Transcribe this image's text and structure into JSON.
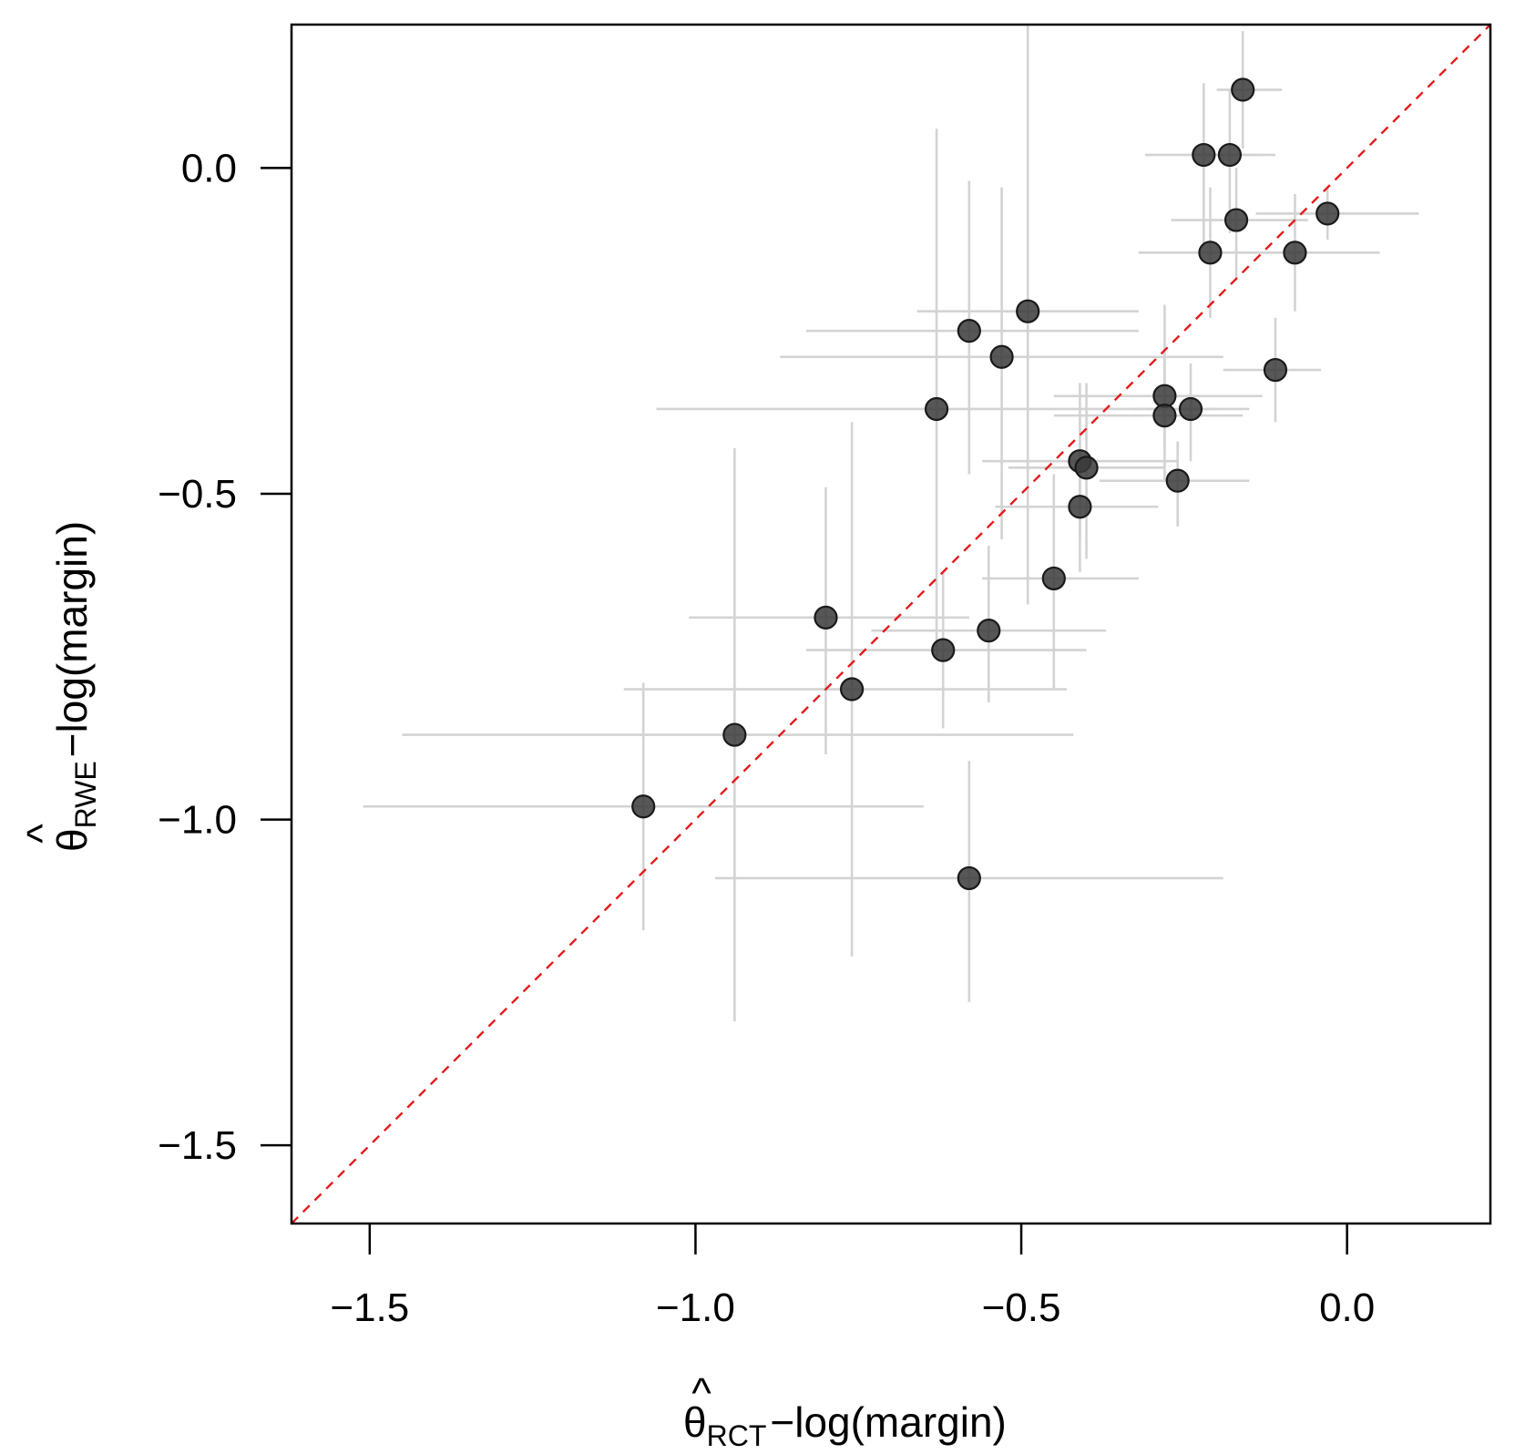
{
  "chart_data": {
    "type": "scatter",
    "title": "",
    "xlabel": {
      "symbol": "θ",
      "hat": "^",
      "subscript": "RCT",
      "rest": "−log(margin)"
    },
    "ylabel": {
      "symbol": "θ",
      "hat": "^",
      "subscript": "RWE",
      "rest": "−log(margin)"
    },
    "xlim": [
      -1.62,
      0.22
    ],
    "ylim": [
      -1.62,
      0.22
    ],
    "xticks": [
      -1.5,
      -1.0,
      -0.5,
      0.0
    ],
    "yticks": [
      -1.5,
      -1.0,
      -0.5,
      0.0
    ],
    "xtick_labels": [
      "−1.5",
      "−1.0",
      "−0.5",
      "0.0"
    ],
    "ytick_labels": [
      "−1.5",
      "−1.0",
      "−0.5",
      "0.0"
    ],
    "reference_line": {
      "type": "identity",
      "style": "dashed",
      "color": "#e41a1c"
    },
    "colors": {
      "point": "#3a3a3a",
      "error_bar": "#d3d3d3",
      "reference": "#e41a1c"
    },
    "points": [
      {
        "x": -0.16,
        "y": 0.12,
        "x_lo": -0.2,
        "x_hi": -0.1,
        "y_lo": 0.03,
        "y_hi": 0.21
      },
      {
        "x": -0.22,
        "y": 0.02,
        "x_lo": -0.31,
        "x_hi": -0.13,
        "y_lo": -0.12,
        "y_hi": 0.13
      },
      {
        "x": -0.18,
        "y": 0.02,
        "x_lo": -0.24,
        "x_hi": -0.11,
        "y_lo": -0.1,
        "y_hi": 0.12
      },
      {
        "x": -0.17,
        "y": -0.08,
        "x_lo": -0.27,
        "x_hi": -0.06,
        "y_lo": -0.17,
        "y_hi": 0.0
      },
      {
        "x": -0.03,
        "y": -0.07,
        "x_lo": -0.14,
        "x_hi": 0.11,
        "y_lo": -0.11,
        "y_hi": -0.03
      },
      {
        "x": -0.21,
        "y": -0.13,
        "x_lo": -0.32,
        "x_hi": -0.11,
        "y_lo": -0.23,
        "y_hi": -0.03
      },
      {
        "x": -0.08,
        "y": -0.13,
        "x_lo": -0.16,
        "x_hi": 0.05,
        "y_lo": -0.22,
        "y_hi": -0.04
      },
      {
        "x": -0.49,
        "y": -0.22,
        "x_lo": -0.66,
        "x_hi": -0.32,
        "y_lo": -0.67,
        "y_hi": 0.22
      },
      {
        "x": -0.58,
        "y": -0.25,
        "x_lo": -0.83,
        "x_hi": -0.32,
        "y_lo": -0.47,
        "y_hi": -0.02
      },
      {
        "x": -0.53,
        "y": -0.29,
        "x_lo": -0.87,
        "x_hi": -0.19,
        "y_lo": -0.57,
        "y_hi": -0.03
      },
      {
        "x": -0.11,
        "y": -0.31,
        "x_lo": -0.19,
        "x_hi": -0.04,
        "y_lo": -0.39,
        "y_hi": -0.23
      },
      {
        "x": -0.28,
        "y": -0.35,
        "x_lo": -0.45,
        "x_hi": -0.13,
        "y_lo": -0.43,
        "y_hi": -0.21
      },
      {
        "x": -0.63,
        "y": -0.37,
        "x_lo": -1.06,
        "x_hi": -0.2,
        "y_lo": -0.75,
        "y_hi": 0.06
      },
      {
        "x": -0.28,
        "y": -0.38,
        "x_lo": -0.45,
        "x_hi": -0.16,
        "y_lo": -0.48,
        "y_hi": -0.28
      },
      {
        "x": -0.24,
        "y": -0.37,
        "x_lo": -0.33,
        "x_hi": -0.15,
        "y_lo": -0.45,
        "y_hi": -0.3
      },
      {
        "x": -0.41,
        "y": -0.45,
        "x_lo": -0.56,
        "x_hi": -0.26,
        "y_lo": -0.57,
        "y_hi": -0.33
      },
      {
        "x": -0.4,
        "y": -0.46,
        "x_lo": -0.52,
        "x_hi": -0.28,
        "y_lo": -0.6,
        "y_hi": -0.33
      },
      {
        "x": -0.26,
        "y": -0.48,
        "x_lo": -0.38,
        "x_hi": -0.15,
        "y_lo": -0.55,
        "y_hi": -0.42
      },
      {
        "x": -0.41,
        "y": -0.52,
        "x_lo": -0.54,
        "x_hi": -0.29,
        "y_lo": -0.62,
        "y_hi": -0.42
      },
      {
        "x": -0.45,
        "y": -0.63,
        "x_lo": -0.56,
        "x_hi": -0.32,
        "y_lo": -0.8,
        "y_hi": -0.47
      },
      {
        "x": -0.8,
        "y": -0.69,
        "x_lo": -1.01,
        "x_hi": -0.58,
        "y_lo": -0.9,
        "y_hi": -0.49
      },
      {
        "x": -0.55,
        "y": -0.71,
        "x_lo": -0.73,
        "x_hi": -0.37,
        "y_lo": -0.82,
        "y_hi": -0.58
      },
      {
        "x": -0.62,
        "y": -0.74,
        "x_lo": -0.83,
        "x_hi": -0.4,
        "y_lo": -0.86,
        "y_hi": -0.62
      },
      {
        "x": -0.76,
        "y": -0.8,
        "x_lo": -1.11,
        "x_hi": -0.43,
        "y_lo": -1.21,
        "y_hi": -0.39
      },
      {
        "x": -0.94,
        "y": -0.87,
        "x_lo": -1.45,
        "x_hi": -0.42,
        "y_lo": -1.31,
        "y_hi": -0.43
      },
      {
        "x": -1.08,
        "y": -0.98,
        "x_lo": -1.51,
        "x_hi": -0.65,
        "y_lo": -1.17,
        "y_hi": -0.79
      },
      {
        "x": -0.58,
        "y": -1.09,
        "x_lo": -0.97,
        "x_hi": -0.19,
        "y_lo": -1.28,
        "y_hi": -0.91
      }
    ]
  }
}
